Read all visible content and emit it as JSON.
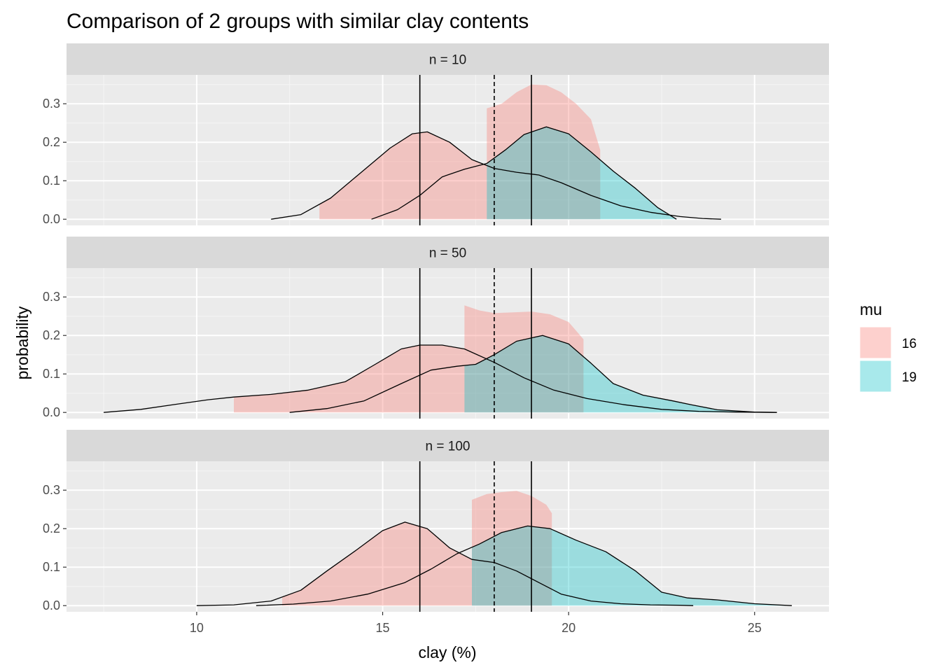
{
  "chart_data": {
    "type": "area",
    "title": "Comparison of 2 groups with similar clay contents",
    "xlabel": "clay (%)",
    "ylabel": "probability",
    "xlim": [
      6.5,
      27.0
    ],
    "ylim": [
      -0.016,
      0.375
    ],
    "x_ticks": [
      10,
      15,
      20,
      25
    ],
    "y_ticks": [
      0.0,
      0.1,
      0.2,
      0.3
    ],
    "y_tick_labels": [
      "0.0",
      "0.1",
      "0.2",
      "0.3"
    ],
    "x_tick_labels": [
      "10",
      "15",
      "20",
      "25"
    ],
    "grid": true,
    "legend": {
      "title": "mu",
      "position": "right",
      "entries": [
        {
          "label": "16",
          "color": "#F8766D"
        },
        {
          "label": "19",
          "color": "#00BFC4"
        }
      ]
    },
    "reference_lines": {
      "solid": [
        16,
        19
      ],
      "dashed": [
        18
      ]
    },
    "panels": [
      {
        "label": "n = 10",
        "series": [
          {
            "name": "16",
            "x": [
              12.0,
              12.8,
              13.6,
              14.4,
              15.2,
              15.8,
              16.2,
              16.8,
              17.4,
              18.0,
              18.6,
              19.2,
              19.8,
              20.6,
              21.4,
              22.2,
              23.0,
              23.6,
              24.1
            ],
            "y": [
              0.0,
              0.012,
              0.055,
              0.12,
              0.185,
              0.222,
              0.227,
              0.2,
              0.155,
              0.132,
              0.122,
              0.115,
              0.095,
              0.062,
              0.035,
              0.018,
              0.007,
              0.002,
              0.0
            ],
            "fill_range": [
              13.3,
              17.8
            ]
          },
          {
            "name": "19",
            "x": [
              14.7,
              15.4,
              16.0,
              16.6,
              17.2,
              17.8,
              18.3,
              18.8,
              19.4,
              20.0,
              20.6,
              21.2,
              21.8,
              22.4,
              22.9
            ],
            "y": [
              0.0,
              0.025,
              0.062,
              0.11,
              0.13,
              0.145,
              0.18,
              0.22,
              0.24,
              0.222,
              0.175,
              0.125,
              0.08,
              0.03,
              0.0
            ],
            "fill_range": [
              17.8,
              22.9
            ]
          },
          {
            "name": "16-shaded",
            "x": [
              17.8,
              18.2,
              18.6,
              19.0,
              19.4,
              19.8,
              20.2,
              20.6,
              20.85
            ],
            "y": [
              0.288,
              0.3,
              0.33,
              0.35,
              0.348,
              0.33,
              0.3,
              0.26,
              0.18
            ]
          }
        ]
      },
      {
        "label": "n = 50",
        "series": [
          {
            "name": "16",
            "x": [
              7.5,
              8.5,
              9.5,
              10.3,
              11.0,
              12.0,
              13.0,
              14.0,
              14.8,
              15.5,
              16.0,
              16.6,
              17.2,
              18.0,
              18.8,
              19.6,
              20.5,
              21.5,
              22.5,
              23.5,
              24.5,
              25.6
            ],
            "y": [
              0.0,
              0.008,
              0.022,
              0.033,
              0.04,
              0.047,
              0.058,
              0.08,
              0.125,
              0.165,
              0.175,
              0.175,
              0.165,
              0.13,
              0.09,
              0.058,
              0.036,
              0.02,
              0.008,
              0.003,
              0.001,
              0.0
            ],
            "fill_range": [
              11.0,
              17.2
            ]
          },
          {
            "name": "19",
            "x": [
              12.5,
              13.5,
              14.5,
              15.5,
              16.3,
              17.0,
              17.5,
              18.0,
              18.6,
              19.3,
              20.0,
              20.6,
              21.2,
              22.0,
              22.8,
              23.3,
              24.0,
              25.0,
              25.6
            ],
            "y": [
              0.0,
              0.01,
              0.03,
              0.075,
              0.11,
              0.12,
              0.125,
              0.15,
              0.185,
              0.2,
              0.178,
              0.128,
              0.075,
              0.045,
              0.03,
              0.02,
              0.007,
              0.001,
              0.0
            ],
            "fill_range": [
              17.2,
              25.6
            ]
          },
          {
            "name": "16-shaded",
            "x": [
              17.2,
              17.6,
              18.0,
              18.5,
              19.0,
              19.5,
              20.0,
              20.4
            ],
            "y": [
              0.278,
              0.265,
              0.258,
              0.26,
              0.262,
              0.255,
              0.235,
              0.19
            ]
          }
        ]
      },
      {
        "label": "n = 100",
        "series": [
          {
            "name": "16",
            "x": [
              10.0,
              11.0,
              12.0,
              12.8,
              13.5,
              14.3,
              15.0,
              15.6,
              16.2,
              16.8,
              17.4,
              18.0,
              18.6,
              19.2,
              19.8,
              20.6,
              21.4,
              22.2,
              23.0,
              23.35
            ],
            "y": [
              0.0,
              0.002,
              0.012,
              0.04,
              0.09,
              0.145,
              0.195,
              0.217,
              0.2,
              0.15,
              0.12,
              0.112,
              0.09,
              0.06,
              0.03,
              0.012,
              0.005,
              0.002,
              0.001,
              0.0
            ],
            "fill_range": [
              12.3,
              17.4
            ]
          },
          {
            "name": "19",
            "x": [
              11.6,
              12.6,
              13.6,
              14.6,
              15.6,
              16.3,
              17.0,
              17.6,
              18.2,
              18.9,
              19.5,
              20.2,
              21.0,
              21.8,
              22.5,
              23.2,
              24.0,
              25.0,
              26.0
            ],
            "y": [
              0.0,
              0.004,
              0.012,
              0.03,
              0.06,
              0.095,
              0.135,
              0.16,
              0.19,
              0.207,
              0.2,
              0.17,
              0.14,
              0.09,
              0.035,
              0.02,
              0.015,
              0.005,
              0.0
            ],
            "fill_range": [
              17.4,
              26.0
            ]
          },
          {
            "name": "16-shaded",
            "x": [
              17.4,
              17.8,
              18.2,
              18.6,
              19.0,
              19.4,
              19.55
            ],
            "y": [
              0.275,
              0.29,
              0.295,
              0.298,
              0.285,
              0.262,
              0.24
            ]
          }
        ]
      }
    ]
  }
}
